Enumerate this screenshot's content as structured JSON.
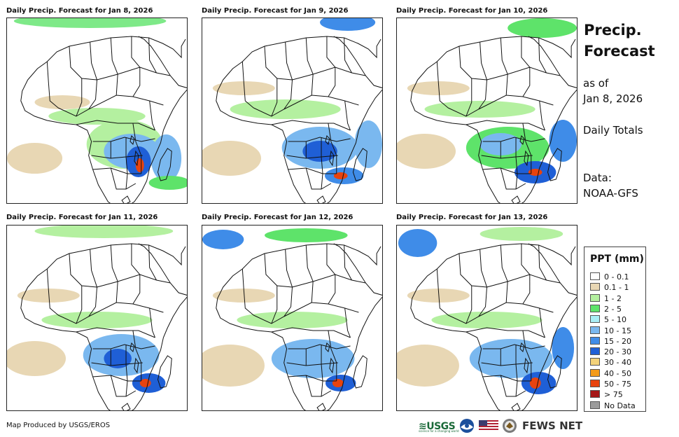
{
  "panels": [
    {
      "title": "Daily Precip. Forecast for Jan 8, 2026"
    },
    {
      "title": "Daily Precip. Forecast for Jan 9, 2026"
    },
    {
      "title": "Daily Precip. Forecast for Jan 10, 2026"
    },
    {
      "title": "Daily Precip. Forecast for Jan 11, 2026"
    },
    {
      "title": "Daily Precip. Forecast for Jan 12, 2026"
    },
    {
      "title": "Daily Precip. Forecast for Jan 13, 2026"
    }
  ],
  "side": {
    "title_line1": "Precip.",
    "title_line2": "Forecast",
    "as_of": "as of",
    "date": "Jan 8, 2026",
    "totals": "Daily Totals",
    "data_label": "Data:",
    "data_source": "NOAA-GFS"
  },
  "legend": {
    "title": "PPT (mm)",
    "items": [
      {
        "label": "0 - 0.1",
        "color": "#ffffff"
      },
      {
        "label": "0.1 - 1",
        "color": "#e8d7b4"
      },
      {
        "label": "1 - 2",
        "color": "#b4f0a0"
      },
      {
        "label": "2 - 5",
        "color": "#5ee36a"
      },
      {
        "label": "5 - 10",
        "color": "#a9eef5"
      },
      {
        "label": "10 - 15",
        "color": "#7ab8ef"
      },
      {
        "label": "15 - 20",
        "color": "#3f8ce8"
      },
      {
        "label": "20 - 30",
        "color": "#1f5fd6"
      },
      {
        "label": "30 - 40",
        "color": "#f3d27a"
      },
      {
        "label": "40 - 50",
        "color": "#f39b1a"
      },
      {
        "label": "50 - 75",
        "color": "#e8430e"
      },
      {
        "label": "> 75",
        "color": "#a51818"
      },
      {
        "label": "No Data",
        "color": "#9b9b9b"
      }
    ]
  },
  "footer": {
    "credit": "Map Produced by USGS/EROS",
    "usgs": "≋USGS",
    "usgs_tag": "science for a changing world",
    "fews": "FEWS NET"
  }
}
